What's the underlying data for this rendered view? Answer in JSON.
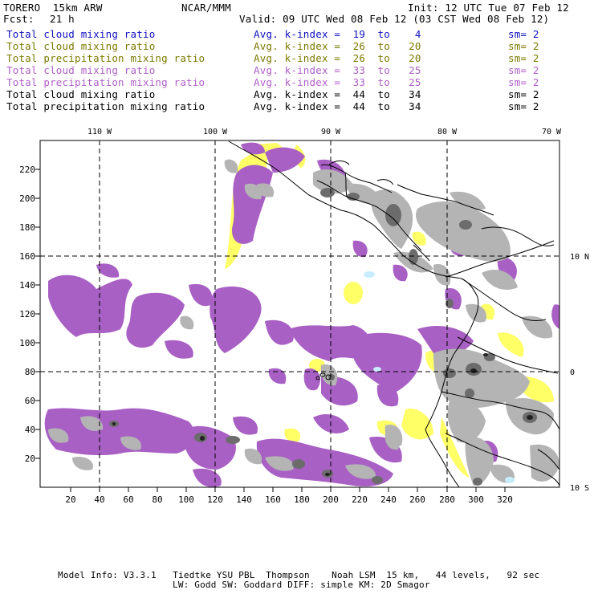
{
  "header": {
    "model_name": "TORERO  15km ARW",
    "center": "NCAR/MMM",
    "init": "Init: 12 UTC Tue 07 Feb 12",
    "fcst_label": "Fcst:",
    "fcst_hours": "21 h",
    "valid": "Valid: 09 UTC Wed 08 Feb 12 (03 CST Wed 08 Feb 12)"
  },
  "legend": [
    {
      "field": "Total cloud mixing ratio",
      "kindex": "Avg. k-index =  19  to    4",
      "sm": "sm= 2",
      "color": "#1010c0"
    },
    {
      "field": "Total cloud mixing ratio",
      "kindex": "Avg. k-index =  26  to   20",
      "sm": "sm= 2",
      "color": "#7a7a00"
    },
    {
      "field": "Total precipitation mixing ratio",
      "kindex": "Avg. k-index =  26  to   20",
      "sm": "sm= 2",
      "color": "#7a7a00"
    },
    {
      "field": "Total cloud mixing ratio",
      "kindex": "Avg. k-index =  33  to   25",
      "sm": "sm= 2",
      "color": "#b060c8"
    },
    {
      "field": "Total precipitation mixing ratio",
      "kindex": "Avg. k-index =  33  to   25",
      "sm": "sm= 2",
      "color": "#b060c8"
    },
    {
      "field": "Total cloud mixing ratio",
      "kindex": "Avg. k-index =  44  to   34",
      "sm": "sm= 2",
      "color": "#000000"
    },
    {
      "field": "Total precipitation mixing ratio",
      "kindex": "Avg. k-index =  44  to   34",
      "sm": "sm= 2",
      "color": "#000000"
    }
  ],
  "map": {
    "lon_labels": [
      "110 W",
      "100 W",
      "90 W",
      "80 W",
      "70 W"
    ],
    "lat_labels": [
      "10 N",
      "0",
      "10 S"
    ],
    "x_ticks": [
      "20",
      "40",
      "60",
      "80",
      "100",
      "120",
      "140",
      "160",
      "180",
      "200",
      "220",
      "240",
      "260",
      "280",
      "300",
      "320"
    ],
    "y_ticks": [
      "20",
      "40",
      "60",
      "80",
      "100",
      "120",
      "140",
      "160",
      "180",
      "200",
      "220"
    ],
    "colors": {
      "purple": "#a960c4",
      "yellow": "#ffff66",
      "lightgray": "#b4b4b4",
      "darkgray": "#6c6c6c",
      "cyan": "#c8ecff",
      "grid_black": "#000000"
    }
  },
  "footer": {
    "line1": "Model Info: V3.3.1   Tiedtke YSU PBL  Thompson    Noah LSM  15 km,   44 levels,   92 sec",
    "line2": "LW: Godd SW: Goddard DIFF: simple KM: 2D Smagor"
  }
}
